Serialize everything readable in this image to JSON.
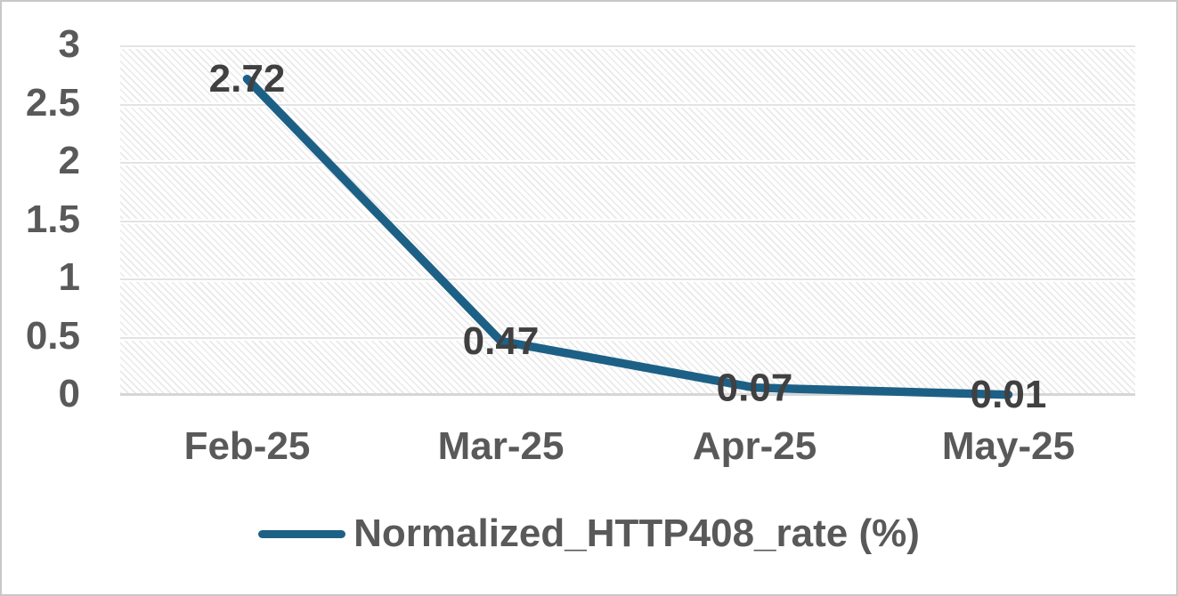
{
  "chart_data": {
    "type": "line",
    "title": "",
    "xlabel": "",
    "ylabel": "",
    "categories": [
      "Feb-25",
      "Mar-25",
      "Apr-25",
      "May-25"
    ],
    "series": [
      {
        "name": "Normalized_HTTP408_rate (%)",
        "values": [
          2.72,
          0.47,
          0.07,
          0.01
        ],
        "data_labels": [
          "2.72",
          "0.47",
          "0.07",
          "0.01"
        ],
        "color": "#1d6086"
      }
    ],
    "ylim": [
      0,
      3
    ],
    "y_ticks": [
      0,
      0.5,
      1,
      1.5,
      2,
      2.5,
      3
    ],
    "y_tick_labels": [
      "0",
      "0.5",
      "1",
      "1.5",
      "2",
      "2.5",
      "3"
    ],
    "grid": true,
    "plot_area_fill": "light-diagonal-hatch",
    "legend_position": "bottom"
  },
  "colors": {
    "series_line": "#1d6086",
    "axis_label_text": "#595959",
    "data_label_text": "#404040",
    "gridline": "#e3e3e3",
    "axis_line": "#d6d6d6",
    "frame_border": "#c8c8c8"
  },
  "legend": {
    "label": "Normalized_HTTP408_rate (%)"
  }
}
